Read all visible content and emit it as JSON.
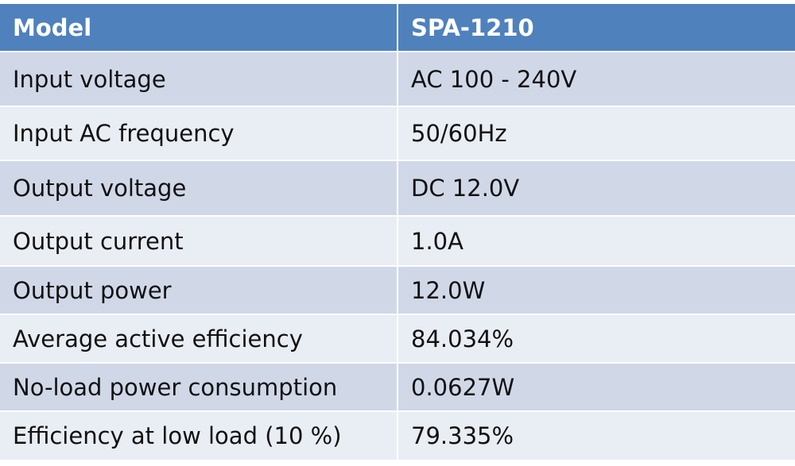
{
  "table": {
    "header": {
      "label": "Model",
      "value": "SPA-1210"
    },
    "rows": [
      {
        "label": "Input voltage",
        "value": "AC 100 - 240V"
      },
      {
        "label": "Input AC frequency",
        "value": "50/60Hz"
      },
      {
        "label": "Output voltage",
        "value": "DC 12.0V"
      },
      {
        "label": "Output current",
        "value": "1.0A"
      },
      {
        "label": "Output power",
        "value": "12.0W"
      },
      {
        "label": "Average active efficiency",
        "value": "84.034%"
      },
      {
        "label": "No-load power consumption",
        "value": "0.0627W"
      },
      {
        "label": "Efficiency at low load (10 %)",
        "value": "79.335%"
      }
    ]
  },
  "colors": {
    "header_bg": "#4f81bd",
    "row_dark": "#d0d8e8",
    "row_light": "#e9edf4"
  }
}
